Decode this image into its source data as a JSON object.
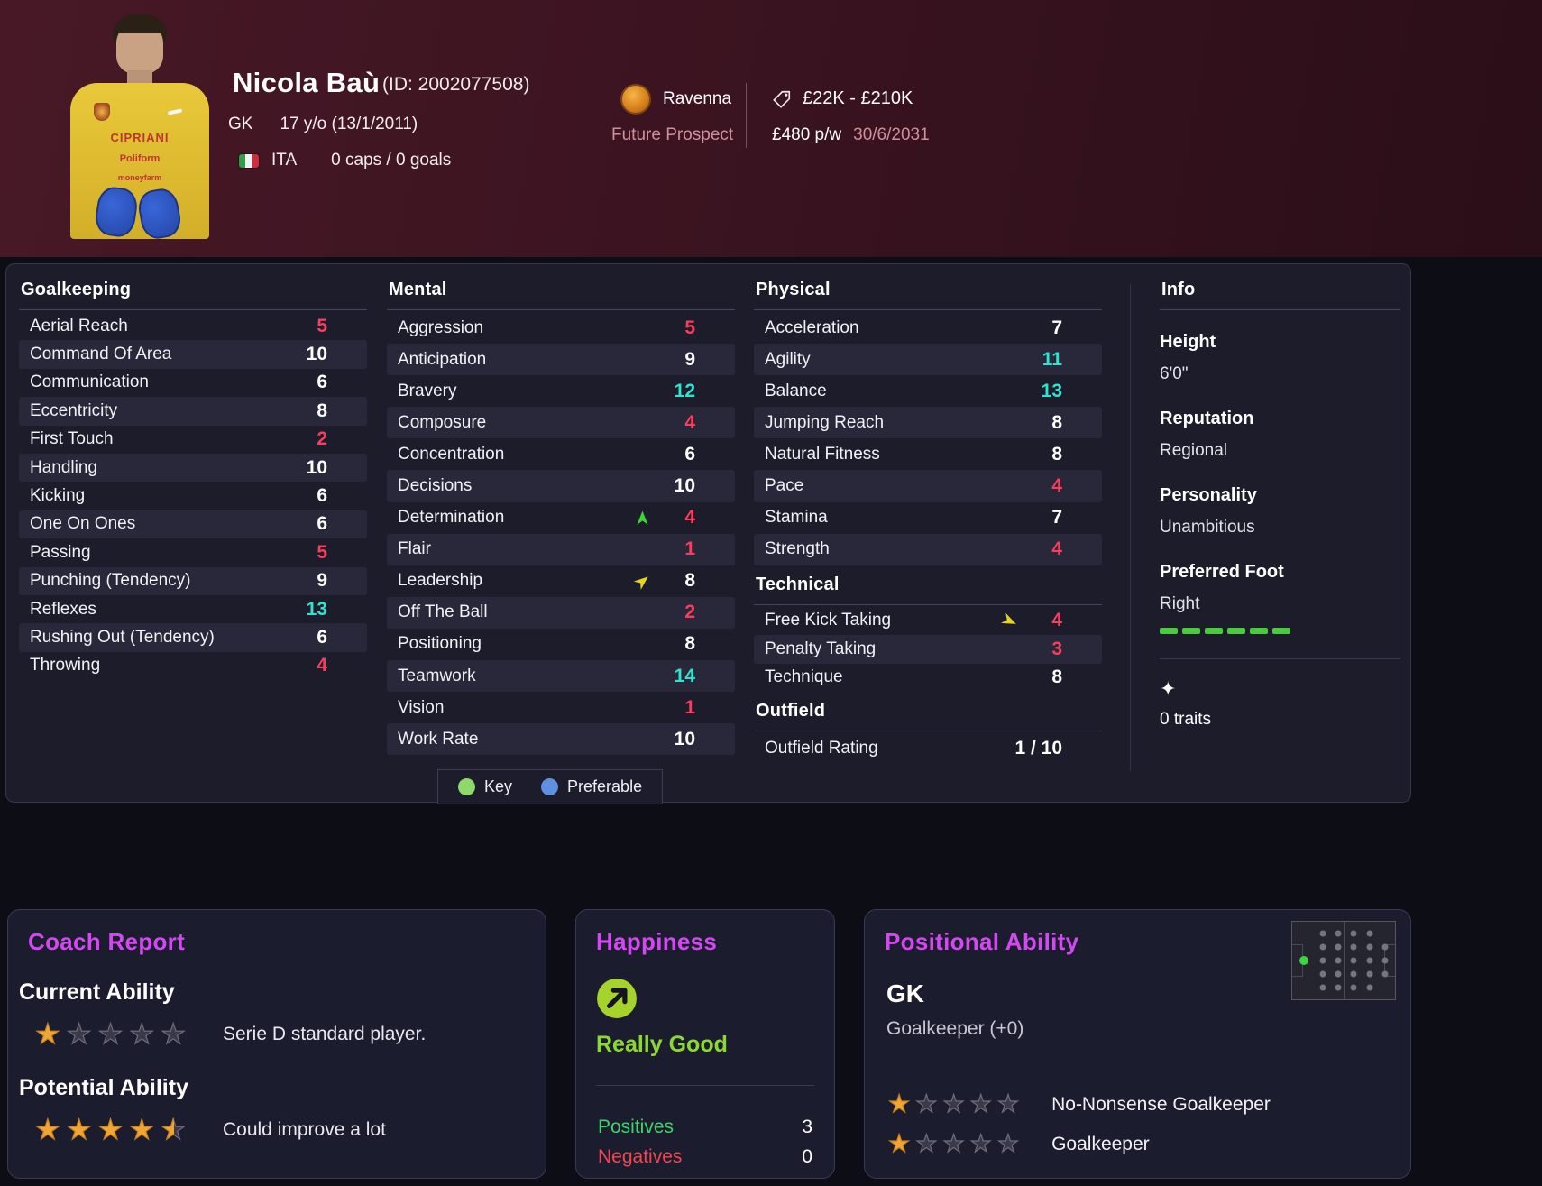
{
  "header": {
    "name": "Nicola Baù",
    "id_label": "(ID: 2002077508)",
    "position": "GK",
    "age": "17 y/o (13/1/2011)",
    "nation": "ITA",
    "caps": "0 caps / 0 goals",
    "club": "Ravenna",
    "status": "Future Prospect",
    "value": "£22K - £210K",
    "wage": "£480 p/w",
    "contract_end": "30/6/2031",
    "shirt_lines": [
      "CIPRIANI",
      "Poliform",
      "moneyfarm"
    ]
  },
  "attributes": {
    "goalkeeping": {
      "title": "Goalkeeping",
      "rows": [
        {
          "label": "Aerial Reach",
          "value": "5",
          "tone": "low"
        },
        {
          "label": "Command Of Area",
          "value": "10",
          "tone": "mid"
        },
        {
          "label": "Communication",
          "value": "6",
          "tone": "mid"
        },
        {
          "label": "Eccentricity",
          "value": "8",
          "tone": "mid"
        },
        {
          "label": "First Touch",
          "value": "2",
          "tone": "low"
        },
        {
          "label": "Handling",
          "value": "10",
          "tone": "mid"
        },
        {
          "label": "Kicking",
          "value": "6",
          "tone": "mid"
        },
        {
          "label": "One On Ones",
          "value": "6",
          "tone": "mid"
        },
        {
          "label": "Passing",
          "value": "5",
          "tone": "low"
        },
        {
          "label": "Punching (Tendency)",
          "value": "9",
          "tone": "mid"
        },
        {
          "label": "Reflexes",
          "value": "13",
          "tone": "high"
        },
        {
          "label": "Rushing Out (Tendency)",
          "value": "6",
          "tone": "mid"
        },
        {
          "label": "Throwing",
          "value": "4",
          "tone": "low"
        }
      ]
    },
    "mental": {
      "title": "Mental",
      "rows": [
        {
          "label": "Aggression",
          "value": "5",
          "tone": "low"
        },
        {
          "label": "Anticipation",
          "value": "9",
          "tone": "mid"
        },
        {
          "label": "Bravery",
          "value": "12",
          "tone": "high"
        },
        {
          "label": "Composure",
          "value": "4",
          "tone": "low"
        },
        {
          "label": "Concentration",
          "value": "6",
          "tone": "mid"
        },
        {
          "label": "Decisions",
          "value": "10",
          "tone": "mid"
        },
        {
          "label": "Determination",
          "value": "4",
          "tone": "low",
          "icon": "up-green"
        },
        {
          "label": "Flair",
          "value": "1",
          "tone": "low"
        },
        {
          "label": "Leadership",
          "value": "8",
          "tone": "mid",
          "icon": "ne-yellow"
        },
        {
          "label": "Off The Ball",
          "value": "2",
          "tone": "low"
        },
        {
          "label": "Positioning",
          "value": "8",
          "tone": "mid"
        },
        {
          "label": "Teamwork",
          "value": "14",
          "tone": "high"
        },
        {
          "label": "Vision",
          "value": "1",
          "tone": "low"
        },
        {
          "label": "Work Rate",
          "value": "10",
          "tone": "mid"
        }
      ]
    },
    "physical": {
      "title": "Physical",
      "rows": [
        {
          "label": "Acceleration",
          "value": "7",
          "tone": "mid"
        },
        {
          "label": "Agility",
          "value": "11",
          "tone": "high"
        },
        {
          "label": "Balance",
          "value": "13",
          "tone": "high"
        },
        {
          "label": "Jumping Reach",
          "value": "8",
          "tone": "mid"
        },
        {
          "label": "Natural Fitness",
          "value": "8",
          "tone": "mid"
        },
        {
          "label": "Pace",
          "value": "4",
          "tone": "low"
        },
        {
          "label": "Stamina",
          "value": "7",
          "tone": "mid"
        },
        {
          "label": "Strength",
          "value": "4",
          "tone": "low"
        }
      ]
    },
    "technical": {
      "title": "Technical",
      "rows": [
        {
          "label": "Free Kick Taking",
          "value": "4",
          "tone": "low",
          "icon": "e-yellow"
        },
        {
          "label": "Penalty Taking",
          "value": "3",
          "tone": "low"
        },
        {
          "label": "Technique",
          "value": "8",
          "tone": "mid"
        }
      ]
    },
    "outfield": {
      "title": "Outfield",
      "rating_label": "Outfield Rating",
      "rating_value": "1 / 10"
    }
  },
  "info": {
    "title": "Info",
    "height_label": "Height",
    "height_value": "6'0\"",
    "reputation_label": "Reputation",
    "reputation_value": "Regional",
    "personality_label": "Personality",
    "personality_value": "Unambitious",
    "foot_label": "Preferred Foot",
    "foot_value": "Right",
    "traits_label": "0 traits"
  },
  "legend": {
    "key": "Key",
    "preferable": "Preferable"
  },
  "coach_report": {
    "title": "Coach Report",
    "current_label": "Current Ability",
    "current_stars": 1,
    "current_text": "Serie D standard player.",
    "potential_label": "Potential Ability",
    "potential_stars": 4.5,
    "potential_text": "Could improve a lot"
  },
  "happiness": {
    "title": "Happiness",
    "level": "Really Good",
    "positives_label": "Positives",
    "positives_value": "3",
    "negatives_label": "Negatives",
    "negatives_value": "0"
  },
  "positional": {
    "title": "Positional Ability",
    "position": "GK",
    "detail": "Goalkeeper (+0)",
    "roles": [
      {
        "stars": 1,
        "name": "No-Nonsense Goalkeeper"
      },
      {
        "stars": 1,
        "name": "Goalkeeper"
      }
    ]
  },
  "colors": {
    "attribute_low": "#fa3c5f",
    "attribute_high": "#31e3cf",
    "accent_magenta": "#d348f0",
    "happiness_green": "#8cd832",
    "positive_green": "#3bd469",
    "negative_red": "#f4454f",
    "star_gold": "#f0a636",
    "key_green": "#8ed96c",
    "preferable_blue": "#5f8fe0",
    "foot_bar_green": "#49cc3b",
    "header_maroon": "#3c1421",
    "panel_bg": "#1c1c2b"
  }
}
